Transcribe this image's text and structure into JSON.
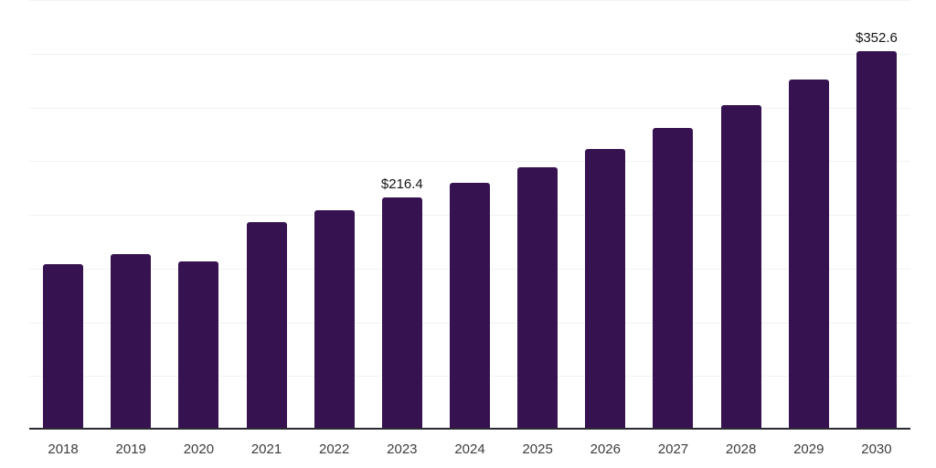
{
  "chart_data": {
    "type": "bar",
    "title": "",
    "xlabel": "",
    "ylabel": "",
    "categories": [
      "2018",
      "2019",
      "2020",
      "2021",
      "2022",
      "2023",
      "2024",
      "2025",
      "2026",
      "2027",
      "2028",
      "2029",
      "2030"
    ],
    "values": [
      154.0,
      163.4,
      157.0,
      193.2,
      204.5,
      216.4,
      229.4,
      244.2,
      261.2,
      281.1,
      302.1,
      325.6,
      352.6
    ],
    "point_labels": {
      "2023": "$216.4",
      "2030": "$352.6"
    },
    "ylim": [
      0,
      400
    ],
    "gridline_step": 50,
    "layout": {
      "grid": "horizontal-only",
      "legend": "none",
      "y_tick_labels": "none"
    },
    "colors": {
      "bar": "#361250",
      "gridline": "#f2f2f2",
      "axis_line": "#2a2a33",
      "tick_label": "#3d3d3d",
      "data_label": "#141414"
    }
  }
}
